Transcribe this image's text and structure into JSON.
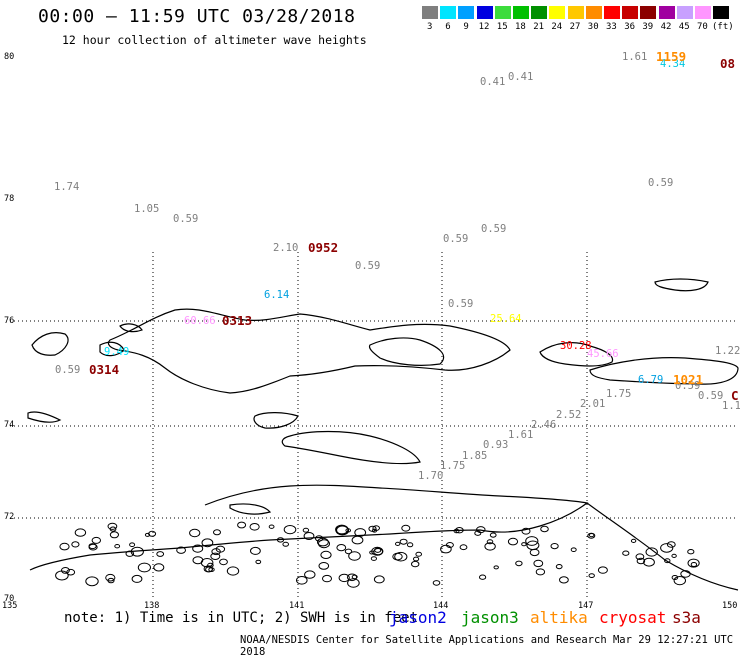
{
  "header": {
    "title": "00:00 – 11:59 UTC 03/28/2018",
    "subtitle": "12 hour collection of altimeter wave heights"
  },
  "legend": {
    "unit": "(ft)",
    "items": [
      {
        "label": "3",
        "color": "#7f7f7f"
      },
      {
        "label": "6",
        "color": "#00e5ff"
      },
      {
        "label": "9",
        "color": "#00a0ff"
      },
      {
        "label": "12",
        "color": "#0000e0"
      },
      {
        "label": "15",
        "color": "#3cdc3c"
      },
      {
        "label": "18",
        "color": "#00c000"
      },
      {
        "label": "21",
        "color": "#009000"
      },
      {
        "label": "24",
        "color": "#ffff00"
      },
      {
        "label": "27",
        "color": "#ffc800"
      },
      {
        "label": "30",
        "color": "#ff8c00"
      },
      {
        "label": "33",
        "color": "#ff0000"
      },
      {
        "label": "36",
        "color": "#c80000"
      },
      {
        "label": "39",
        "color": "#8c0000"
      },
      {
        "label": "42",
        "color": "#a000a0"
      },
      {
        "label": "45",
        "color": "#c8a0ff"
      },
      {
        "label": "70",
        "color": "#ff96ff"
      },
      {
        "label": "",
        "color": "#000000"
      }
    ]
  },
  "map": {
    "lat_labels": [
      "80",
      "78",
      "76",
      "74",
      "72",
      "70"
    ],
    "lon_labels": [
      "135",
      "138",
      "141",
      "144",
      "147",
      "150"
    ],
    "wave_heights": [
      {
        "v": "1.61",
        "c": "#7f7f7f"
      },
      {
        "v": "4.34",
        "c": "#00c8e0"
      },
      {
        "v": "0.41",
        "c": "#7f7f7f"
      },
      {
        "v": "0.41",
        "c": "#7f7f7f"
      },
      {
        "v": "1.74",
        "c": "#7f7f7f"
      },
      {
        "v": "0.59",
        "c": "#7f7f7f"
      },
      {
        "v": "1.05",
        "c": "#7f7f7f"
      },
      {
        "v": "0.59",
        "c": "#7f7f7f"
      },
      {
        "v": "0.59",
        "c": "#7f7f7f"
      },
      {
        "v": "0.59",
        "c": "#7f7f7f"
      },
      {
        "v": "2.10",
        "c": "#7f7f7f"
      },
      {
        "v": "0.59",
        "c": "#7f7f7f"
      },
      {
        "v": "6.14",
        "c": "#00a0e0"
      },
      {
        "v": "0.59",
        "c": "#7f7f7f"
      },
      {
        "v": "60.66",
        "c": "#ff96ff"
      },
      {
        "v": "25.64",
        "c": "#ffff00"
      },
      {
        "v": "30.28",
        "c": "#ff0000"
      },
      {
        "v": "45.66",
        "c": "#ff96ff"
      },
      {
        "v": "1.22",
        "c": "#7f7f7f"
      },
      {
        "v": "9.49",
        "c": "#00e5ff"
      },
      {
        "v": "0.59",
        "c": "#7f7f7f"
      },
      {
        "v": "6.79",
        "c": "#00a0e0"
      },
      {
        "v": "0.59",
        "c": "#7f7f7f"
      },
      {
        "v": "0.59",
        "c": "#7f7f7f"
      },
      {
        "v": "1.75",
        "c": "#7f7f7f"
      },
      {
        "v": "1.1",
        "c": "#7f7f7f"
      },
      {
        "v": "2.01",
        "c": "#7f7f7f"
      },
      {
        "v": "2.52",
        "c": "#7f7f7f"
      },
      {
        "v": "2.46",
        "c": "#7f7f7f"
      },
      {
        "v": "1.61",
        "c": "#7f7f7f"
      },
      {
        "v": "0.93",
        "c": "#7f7f7f"
      },
      {
        "v": "1.85",
        "c": "#7f7f7f"
      },
      {
        "v": "1.75",
        "c": "#7f7f7f"
      },
      {
        "v": "1.70",
        "c": "#7f7f7f"
      }
    ],
    "time_labels": [
      {
        "v": "1159",
        "c": "#ff8c00"
      },
      {
        "v": "08",
        "c": "#8c0000"
      },
      {
        "v": "0952",
        "c": "#8c0000"
      },
      {
        "v": "0313",
        "c": "#8c0000"
      },
      {
        "v": "0314",
        "c": "#8c0000"
      },
      {
        "v": "1021",
        "c": "#ff8c00"
      },
      {
        "v": "C",
        "c": "#8c0000"
      }
    ]
  },
  "footer": {
    "note": "note: 1) Time is in UTC; 2) SWH is in feet",
    "satellites": [
      {
        "name": "jason2",
        "color": "#0000e0"
      },
      {
        "name": "jason3",
        "color": "#009000"
      },
      {
        "name": "altika",
        "color": "#ff8c00"
      },
      {
        "name": "cryosat",
        "color": "#ff0000"
      },
      {
        "name": "s3a",
        "color": "#8c0000"
      }
    ],
    "credit": "NOAA/NESDIS Center for Satellite Applications and Research   Mar 29 12:27:21 UTC 2018"
  }
}
